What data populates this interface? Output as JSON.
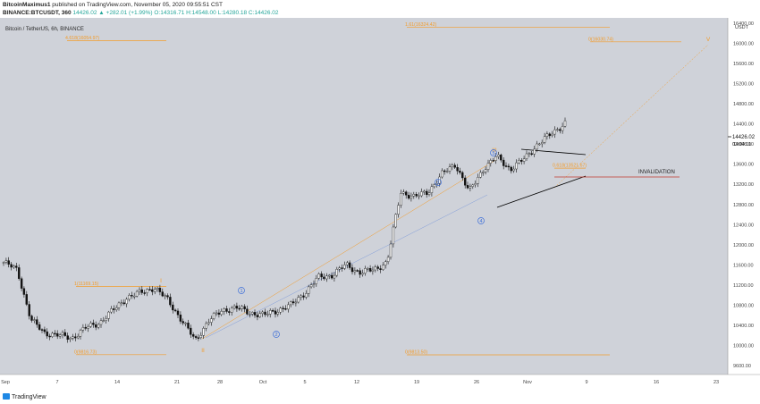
{
  "header": {
    "author": "BitcoinMaximus1",
    "published_text": "published on TradingView.com, November 05, 2020 09:55:51 CST",
    "symbol_line": "BINANCE:BTCUSDT, 360",
    "ohlc_text": "14426.02 ▲ +282.01 (+1.99%)  O:14316.71  H:14548.00  L:14280.18  C:14426.02"
  },
  "chart_title": "Bitcoin / TetherUS, 6h, BINANCE",
  "currency": "USDT",
  "price_tag": "14426.02",
  "countdown": "03:04:11",
  "footer_logo": "TradingView",
  "colors": {
    "background": "#cfd2d9",
    "orange": "#f39c2a",
    "blue": "#3d6fd9",
    "invalidation": "#c0392b",
    "candle": "#111111"
  },
  "chart_data": {
    "type": "candlestick",
    "title": "Bitcoin / TetherUS, 6h, BINANCE",
    "y_axis": {
      "unit": "USDT",
      "ticks": [
        9600,
        10000,
        10400,
        10800,
        11200,
        11600,
        12000,
        12400,
        12800,
        13200,
        13600,
        14000,
        14400,
        14800,
        15200,
        15600,
        16000,
        16400
      ],
      "ylim": [
        9400,
        16800
      ]
    },
    "x_axis": {
      "tick_labels": [
        "Sep",
        "7",
        "14",
        "21",
        "28",
        "Oct",
        "5",
        "12",
        "19",
        "26",
        "Nov",
        "9",
        "16",
        "23"
      ]
    },
    "approx_closes": [
      11650,
      11500,
      10500,
      10250,
      10200,
      10150,
      10350,
      10450,
      10700,
      10950,
      11050,
      11150,
      10900,
      10500,
      10100,
      10500,
      10700,
      10750,
      10650,
      10600,
      10700,
      10800,
      11050,
      11350,
      11400,
      11600,
      11450,
      11500,
      11650,
      13050,
      12950,
      13050,
      13400,
      13600,
      13050,
      13500,
      13750,
      13500,
      13700,
      14000,
      14200,
      14426.02
    ],
    "fib_levels": [
      {
        "label": "4.618(16054.97)",
        "value": 16054.97
      },
      {
        "label": "1(11169.15)",
        "value": 11169.15
      },
      {
        "label": "0(9816.73)",
        "value": 9816.73
      },
      {
        "label": "1.61(16324.42)",
        "value": 16324.42
      },
      {
        "label": "0(16030.74)",
        "value": 16030.74
      },
      {
        "label": "0.618(13521.67)",
        "value": 13521.67
      },
      {
        "label": "0(9813.50)",
        "value": 9813.5
      }
    ],
    "annotations": [
      "INVALIDATION"
    ],
    "wave_labels": [
      "I",
      "II",
      "III",
      "V",
      "1",
      "2",
      "3",
      "4",
      "5"
    ]
  }
}
